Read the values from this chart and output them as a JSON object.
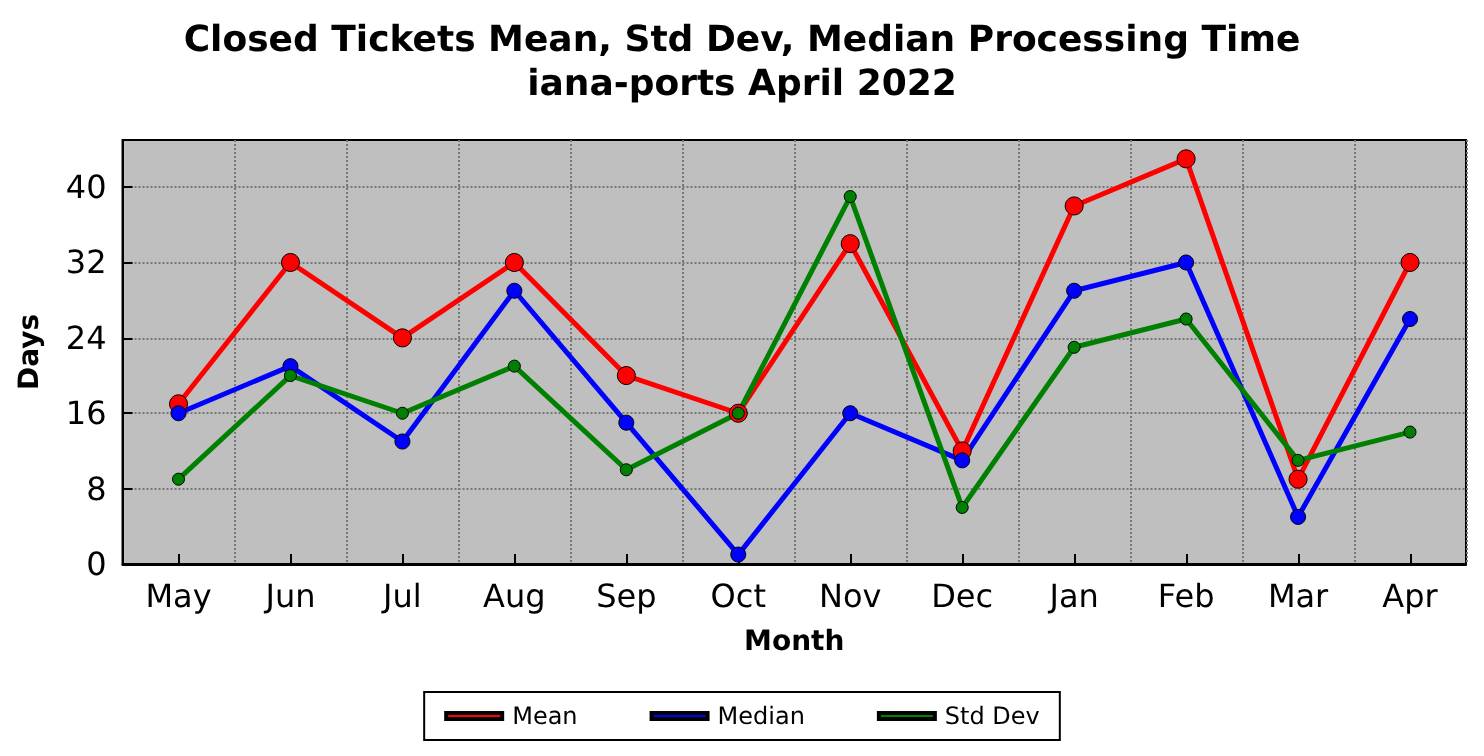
{
  "chart_data": {
    "type": "line",
    "title": "Closed Tickets Mean, Std Dev, Median Processing Time",
    "subtitle": "iana-ports April 2022",
    "xlabel": "Month",
    "ylabel": "Days",
    "categories": [
      "May",
      "Jun",
      "Jul",
      "Aug",
      "Sep",
      "Oct",
      "Nov",
      "Dec",
      "Jan",
      "Feb",
      "Mar",
      "Apr"
    ],
    "series": [
      {
        "name": "Mean",
        "color": "#ff0000",
        "values": [
          17,
          32,
          24,
          32,
          20,
          16,
          34,
          12,
          38,
          43,
          9,
          32
        ]
      },
      {
        "name": "Median",
        "color": "#0000ff",
        "values": [
          16,
          21,
          13,
          29,
          15,
          1,
          16,
          11,
          29,
          32,
          5,
          26
        ]
      },
      {
        "name": "Std Dev",
        "color": "#008000",
        "values": [
          9,
          20,
          16,
          21,
          10,
          16,
          39,
          6,
          23,
          26,
          11,
          14
        ]
      }
    ],
    "ylim": [
      0,
      45
    ],
    "yticks": [
      0,
      8,
      16,
      24,
      32,
      40
    ],
    "grid": true,
    "legend": "bottom",
    "marker": "circle",
    "line_style": "solid"
  }
}
